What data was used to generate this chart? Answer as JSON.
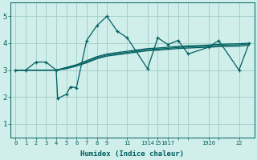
{
  "bg_color": "#d0eeea",
  "line_color": "#006060",
  "grid_color": "#a0ccc8",
  "xlabel": "Humidex (Indice chaleur)",
  "xlim": [
    -0.5,
    23.5
  ],
  "ylim": [
    0.5,
    5.5
  ],
  "yticks": [
    1,
    2,
    3,
    4,
    5
  ],
  "xtick_positions": [
    0,
    1,
    2,
    3,
    4,
    5,
    6,
    7,
    8,
    9,
    11,
    13,
    14,
    15,
    16,
    17,
    19,
    20,
    22
  ],
  "xtick_labels": [
    "0",
    "1",
    "2",
    "3",
    "4",
    "5",
    "6",
    "7",
    "8",
    "9",
    "11",
    "1314",
    "15",
    "1617",
    "",
    "",
    "1920",
    "",
    "22"
  ],
  "line1_x": [
    0,
    1,
    2,
    3,
    4,
    4.15,
    5,
    5.4,
    6,
    7,
    8,
    9,
    10,
    11,
    13,
    14,
    15,
    16,
    17,
    19,
    20,
    22,
    23
  ],
  "line1_y": [
    3,
    3,
    3.3,
    3.3,
    3.0,
    1.95,
    2.1,
    2.38,
    2.35,
    4.1,
    4.65,
    5.0,
    4.45,
    4.2,
    3.05,
    4.2,
    3.95,
    4.1,
    3.6,
    3.85,
    4.1,
    3.0,
    4.0
  ],
  "line2_x": [
    0,
    2,
    3,
    4,
    5,
    6,
    7,
    8,
    9,
    11,
    13,
    14,
    15,
    16,
    17,
    19,
    20,
    22,
    23
  ],
  "line2_y": [
    3,
    3,
    3,
    3,
    3.1,
    3.2,
    3.35,
    3.5,
    3.6,
    3.7,
    3.8,
    3.82,
    3.85,
    3.88,
    3.9,
    3.93,
    3.96,
    3.98,
    4.0
  ],
  "line3_x": [
    0,
    2,
    3,
    4,
    5,
    6,
    7,
    8,
    9,
    11,
    13,
    14,
    15,
    16,
    17,
    19,
    20,
    22,
    23
  ],
  "line3_y": [
    3,
    3,
    3,
    3,
    3.05,
    3.15,
    3.27,
    3.42,
    3.52,
    3.62,
    3.72,
    3.74,
    3.77,
    3.8,
    3.82,
    3.85,
    3.87,
    3.89,
    3.92
  ],
  "line4_x": [
    0,
    2,
    3,
    4,
    5,
    6,
    7,
    8,
    9,
    11,
    13,
    14,
    15,
    16,
    17,
    19,
    20,
    22,
    23
  ],
  "line4_y": [
    3,
    3,
    3,
    3,
    3.08,
    3.18,
    3.31,
    3.46,
    3.56,
    3.66,
    3.76,
    3.78,
    3.81,
    3.84,
    3.86,
    3.89,
    3.92,
    3.94,
    3.97
  ]
}
